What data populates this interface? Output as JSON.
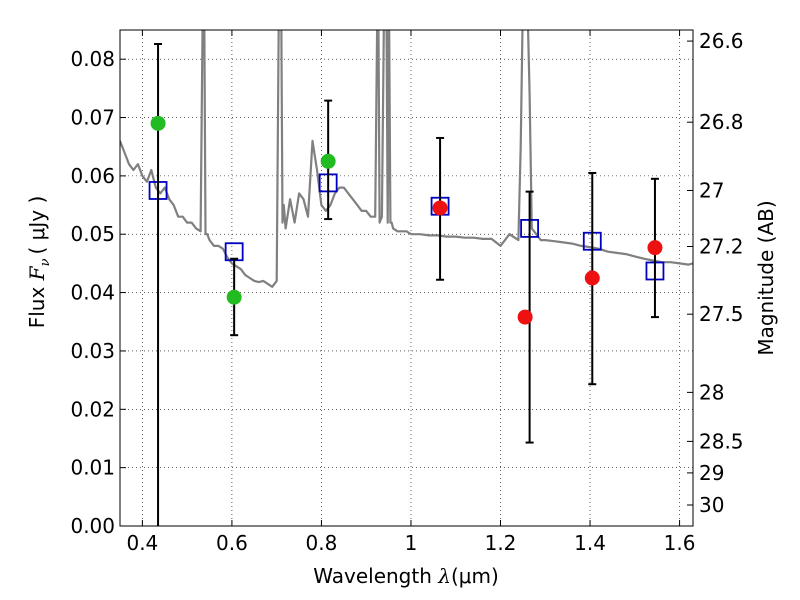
{
  "chart_data": {
    "type": "scatter",
    "xlabel": {
      "prefix": "Wavelength  ",
      "symbol": "λ",
      "units": "(μm)"
    },
    "ylabel": {
      "prefix": "Flux  ",
      "symbol_base": "F",
      "symbol_sub": "ν",
      "units": "( μJy )"
    },
    "y2label": "Magnitude (AB)",
    "xlim": [
      0.35,
      1.63
    ],
    "ylim": [
      0.0,
      0.085
    ],
    "grid": true,
    "x_ticks": [
      0.4,
      0.6,
      0.8,
      1.0,
      1.2,
      1.4,
      1.6
    ],
    "x_tick_labels": [
      "0.4",
      "0.6",
      "0.8",
      "1",
      "1.2",
      "1.4",
      "1.6"
    ],
    "y_ticks": [
      0.0,
      0.01,
      0.02,
      0.03,
      0.04,
      0.05,
      0.06,
      0.07,
      0.08
    ],
    "y_tick_labels": [
      "0.00",
      "0.01",
      "0.02",
      "0.03",
      "0.04",
      "0.05",
      "0.06",
      "0.07",
      "0.08"
    ],
    "y2_ticks": [
      {
        "label": "26.6",
        "flux": 0.0831
      },
      {
        "label": "26.8",
        "flux": 0.0692
      },
      {
        "label": "27",
        "flux": 0.0575
      },
      {
        "label": "27.2",
        "flux": 0.0479
      },
      {
        "label": "27.5",
        "flux": 0.0363
      },
      {
        "label": "28",
        "flux": 0.0229
      },
      {
        "label": "28.5",
        "flux": 0.0145
      },
      {
        "label": "29",
        "flux": 0.0091
      },
      {
        "label": "30",
        "flux": 0.0036
      }
    ],
    "series": [
      {
        "kind": "spectrum",
        "color": "#808080",
        "x": [
          0.35,
          0.36,
          0.37,
          0.38,
          0.39,
          0.4,
          0.41,
          0.42,
          0.43,
          0.44,
          0.45,
          0.46,
          0.47,
          0.48,
          0.49,
          0.5,
          0.51,
          0.52,
          0.53,
          0.535,
          0.538,
          0.541,
          0.545,
          0.55,
          0.56,
          0.57,
          0.58,
          0.59,
          0.6,
          0.61,
          0.62,
          0.63,
          0.64,
          0.65,
          0.66,
          0.67,
          0.68,
          0.69,
          0.7,
          0.705,
          0.71,
          0.713,
          0.716,
          0.72,
          0.73,
          0.74,
          0.75,
          0.76,
          0.77,
          0.78,
          0.79,
          0.8,
          0.81,
          0.82,
          0.83,
          0.84,
          0.85,
          0.86,
          0.87,
          0.88,
          0.89,
          0.9,
          0.91,
          0.92,
          0.925,
          0.927,
          0.93,
          0.935,
          0.94,
          0.945,
          0.948,
          0.951,
          0.954,
          0.957,
          0.96,
          0.97,
          0.98,
          0.99,
          1.0,
          1.02,
          1.04,
          1.06,
          1.08,
          1.1,
          1.12,
          1.14,
          1.16,
          1.18,
          1.2,
          1.22,
          1.24,
          1.245,
          1.25,
          1.255,
          1.26,
          1.265,
          1.27,
          1.28,
          1.29,
          1.3,
          1.32,
          1.34,
          1.36,
          1.38,
          1.4,
          1.42,
          1.44,
          1.46,
          1.48,
          1.5,
          1.52,
          1.54,
          1.56,
          1.58,
          1.6,
          1.62,
          1.63
        ],
        "y": [
          0.066,
          0.064,
          0.062,
          0.061,
          0.062,
          0.06,
          0.059,
          0.061,
          0.058,
          0.057,
          0.058,
          0.056,
          0.055,
          0.053,
          0.053,
          0.052,
          0.052,
          0.051,
          0.0505,
          0.09,
          0.09,
          0.05,
          0.05,
          0.049,
          0.048,
          0.048,
          0.0475,
          0.046,
          0.045,
          0.0445,
          0.044,
          0.043,
          0.0425,
          0.042,
          0.0418,
          0.042,
          0.0415,
          0.041,
          0.042,
          0.09,
          0.09,
          0.052,
          0.055,
          0.051,
          0.056,
          0.052,
          0.057,
          0.056,
          0.053,
          0.066,
          0.061,
          0.055,
          0.054,
          0.055,
          0.057,
          0.058,
          0.058,
          0.057,
          0.056,
          0.055,
          0.054,
          0.054,
          0.053,
          0.053,
          0.09,
          0.09,
          0.052,
          0.053,
          0.09,
          0.09,
          0.052,
          0.09,
          0.052,
          0.052,
          0.051,
          0.0505,
          0.0505,
          0.0505,
          0.05,
          0.05,
          0.0498,
          0.0498,
          0.0496,
          0.0496,
          0.0494,
          0.0494,
          0.0492,
          0.0492,
          0.048,
          0.05,
          0.049,
          0.065,
          0.09,
          0.09,
          0.09,
          0.074,
          0.051,
          0.05,
          0.049,
          0.049,
          0.0488,
          0.0486,
          0.0484,
          0.048,
          0.0478,
          0.0475,
          0.047,
          0.0468,
          0.0466,
          0.0462,
          0.0458,
          0.0455,
          0.0452,
          0.0452,
          0.045,
          0.0448,
          0.045
        ]
      },
      {
        "kind": "model",
        "marker": "open-square",
        "color": "#0000c0",
        "x": [
          0.435,
          0.605,
          0.815,
          1.065,
          1.265,
          1.405,
          1.545
        ],
        "y": [
          0.0575,
          0.047,
          0.0588,
          0.0548,
          0.051,
          0.0488,
          0.0437
        ]
      },
      {
        "kind": "observed",
        "marker": "filled-circle",
        "color_points": [
          "#22bb22",
          "#22bb22",
          "#22bb22",
          "#ee1111",
          "#ee1111",
          "#ee1111",
          "#ee1111"
        ],
        "x": [
          0.435,
          0.605,
          0.815,
          1.065,
          1.255,
          1.405,
          1.545
        ],
        "y": [
          0.069,
          0.0392,
          0.0625,
          0.0545,
          0.0358,
          0.0425,
          0.0477
        ],
        "err_x": [
          0.435,
          0.605,
          0.815,
          1.065,
          1.265,
          1.405,
          1.545
        ],
        "err_low": [
          0.0,
          0.0327,
          0.0526,
          0.0422,
          0.0143,
          0.0243,
          0.0358
        ],
        "err_high": [
          0.0826,
          0.0458,
          0.0729,
          0.0665,
          0.0573,
          0.0605,
          0.0595
        ]
      }
    ]
  }
}
